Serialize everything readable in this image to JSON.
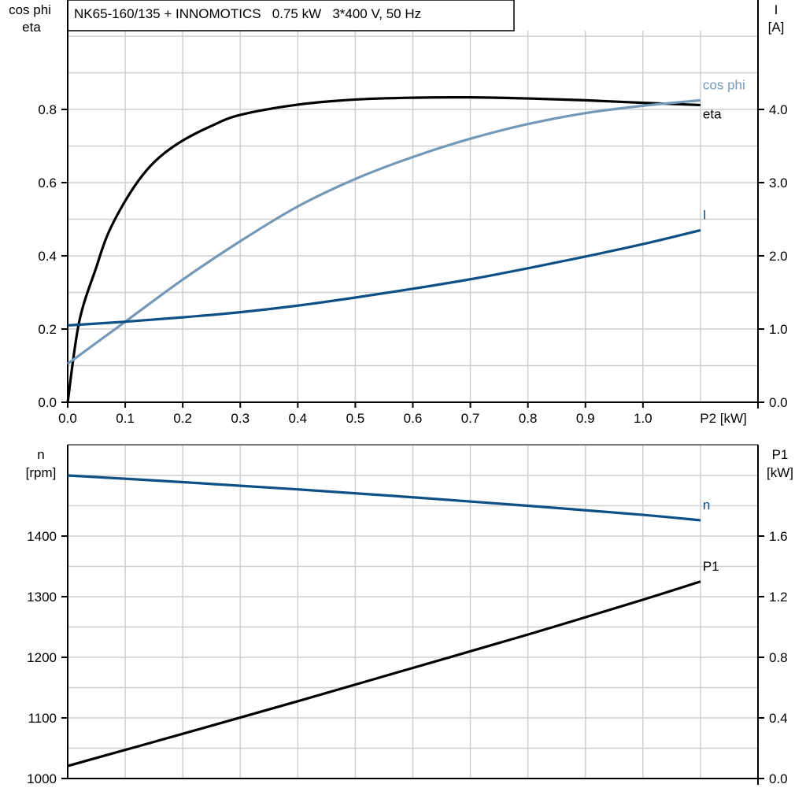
{
  "chart_data": [
    {
      "type": "line",
      "title": "NK65-160/135 + INNOMOTICS   0.75 kW   3*400 V, 50 Hz",
      "xlabel": "P2 [kW]",
      "ylabel_left": [
        "cos phi",
        "eta"
      ],
      "ylabel_right": [
        "I",
        "[A]"
      ],
      "xlim": [
        0,
        1.2
      ],
      "ylim_left": [
        0,
        1.0
      ],
      "ylim_right": [
        0,
        5.0
      ],
      "grid": true,
      "x_ticks": [
        "0.0",
        "0.1",
        "0.2",
        "0.3",
        "0.4",
        "0.5",
        "0.6",
        "0.7",
        "0.8",
        "0.9",
        "1.0"
      ],
      "y_left_ticks": [
        "0.0",
        "0.2",
        "0.4",
        "0.6",
        "0.8"
      ],
      "y_right_ticks": [
        "0.0",
        "1.0",
        "2.0",
        "3.0",
        "4.0"
      ],
      "series": [
        {
          "name": "eta",
          "axis": "left",
          "color": "#000000",
          "x": [
            0,
            0.02,
            0.05,
            0.07,
            0.1,
            0.13,
            0.16,
            0.2,
            0.25,
            0.3,
            0.4,
            0.5,
            0.6,
            0.7,
            0.8,
            0.9,
            1.0,
            1.1
          ],
          "y": [
            0,
            0.22,
            0.37,
            0.46,
            0.55,
            0.62,
            0.67,
            0.715,
            0.755,
            0.785,
            0.813,
            0.827,
            0.832,
            0.833,
            0.83,
            0.825,
            0.818,
            0.812
          ]
        },
        {
          "name": "cos phi",
          "axis": "left",
          "color": "#7499b8",
          "x": [
            0,
            0.1,
            0.2,
            0.3,
            0.4,
            0.5,
            0.6,
            0.7,
            0.8,
            0.9,
            1.0,
            1.1
          ],
          "y": [
            0.105,
            0.22,
            0.335,
            0.44,
            0.535,
            0.61,
            0.67,
            0.72,
            0.76,
            0.79,
            0.81,
            0.825
          ]
        },
        {
          "name": "I",
          "axis": "right",
          "color": "#0e4f86",
          "x": [
            0,
            0.1,
            0.2,
            0.3,
            0.4,
            0.5,
            0.6,
            0.7,
            0.8,
            0.9,
            1.0,
            1.1
          ],
          "y": [
            1.05,
            1.1,
            1.16,
            1.23,
            1.32,
            1.43,
            1.55,
            1.68,
            1.83,
            1.99,
            2.16,
            2.35
          ]
        }
      ]
    },
    {
      "type": "line",
      "xlabel": "",
      "ylabel_left": [
        "n",
        "[rpm]"
      ],
      "ylabel_right": [
        "P1",
        "[kW]"
      ],
      "xlim": [
        0,
        1.2
      ],
      "ylim_left": [
        1000,
        1550
      ],
      "ylim_right": [
        0,
        2.2
      ],
      "grid": true,
      "y_left_ticks": [
        "1000",
        "1100",
        "1200",
        "1300",
        "1400"
      ],
      "y_right_ticks": [
        "0.0",
        "0.4",
        "0.8",
        "1.2",
        "1.6"
      ],
      "series": [
        {
          "name": "n",
          "axis": "left",
          "color": "#0e4f86",
          "x": [
            0,
            0.2,
            0.4,
            0.6,
            0.8,
            1.0,
            1.1
          ],
          "y": [
            1500,
            1489,
            1477,
            1464,
            1450,
            1435,
            1426
          ]
        },
        {
          "name": "P1",
          "axis": "right",
          "color": "#000000",
          "x": [
            0,
            0.2,
            0.4,
            0.6,
            0.8,
            1.0,
            1.1
          ],
          "y": [
            0.083,
            0.295,
            0.51,
            0.73,
            0.95,
            1.18,
            1.3
          ]
        }
      ]
    }
  ]
}
